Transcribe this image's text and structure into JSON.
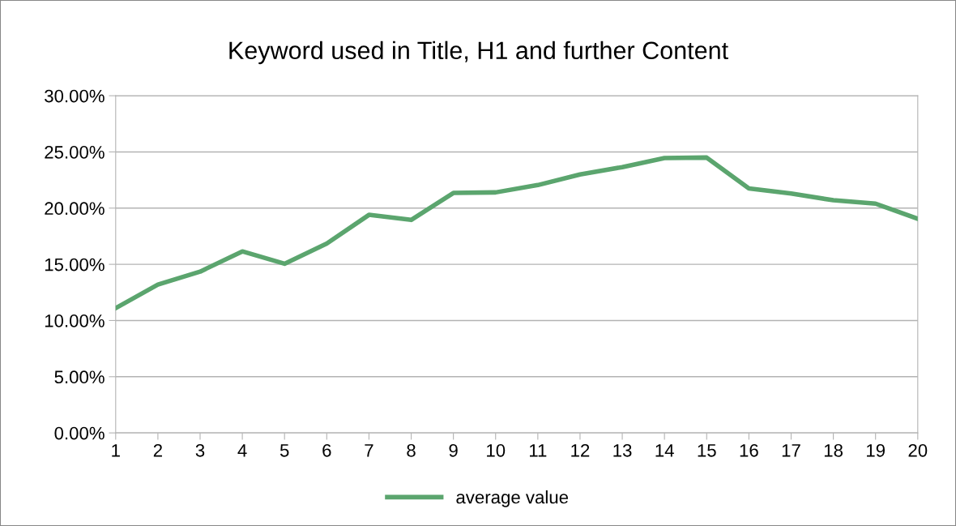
{
  "chart_data": {
    "type": "line",
    "title": "Keyword used in Title, H1 and further Content",
    "x": [
      1,
      2,
      3,
      4,
      5,
      6,
      7,
      8,
      9,
      10,
      11,
      12,
      13,
      14,
      15,
      16,
      17,
      18,
      19,
      20
    ],
    "series": [
      {
        "name": "average value",
        "color": "#5ba56e",
        "values": [
          11.1,
          13.2,
          14.35,
          16.15,
          15.05,
          16.85,
          19.4,
          18.95,
          21.35,
          21.4,
          22.05,
          23.0,
          23.65,
          24.45,
          24.5,
          21.75,
          21.3,
          20.7,
          20.4,
          19.05
        ]
      }
    ],
    "xlim": [
      1,
      20
    ],
    "xticks": [
      1,
      2,
      3,
      4,
      5,
      6,
      7,
      8,
      9,
      10,
      11,
      12,
      13,
      14,
      15,
      16,
      17,
      18,
      19,
      20
    ],
    "ylim": [
      0,
      30
    ],
    "yticks": [
      {
        "value": 0,
        "label": "0.00%"
      },
      {
        "value": 5,
        "label": "5.00%"
      },
      {
        "value": 10,
        "label": "10.00%"
      },
      {
        "value": 15,
        "label": "15.00%"
      },
      {
        "value": 20,
        "label": "20.00%"
      },
      {
        "value": 25,
        "label": "25.00%"
      },
      {
        "value": 30,
        "label": "30.00%"
      }
    ],
    "grid": "y",
    "legend": "bottom",
    "marker": "none",
    "line_style": "solid"
  }
}
